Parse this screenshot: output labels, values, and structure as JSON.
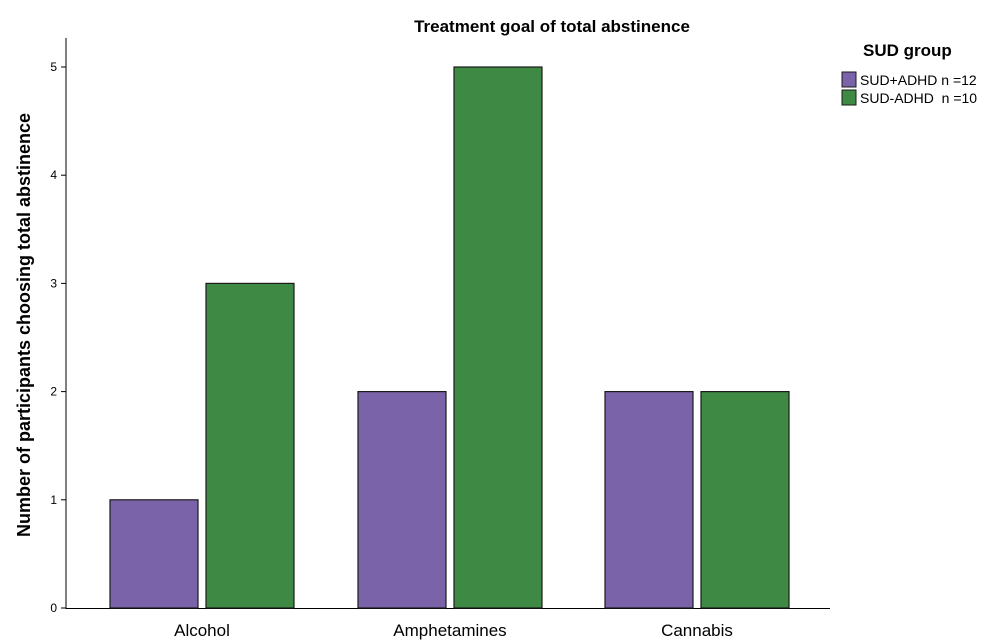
{
  "chart_data": {
    "type": "bar",
    "title": "Treatment goal of total abstinence",
    "xlabel": "",
    "ylabel": "Number of participants choosing total abstinence",
    "categories": [
      "Alcohol",
      "Amphetamines",
      "Cannabis"
    ],
    "ylim": [
      0,
      5
    ],
    "yticks": [
      "0",
      "1",
      "2",
      "3",
      "4",
      "5"
    ],
    "grid": false,
    "legend": {
      "title": "SUD group",
      "position": "top-right"
    },
    "series": [
      {
        "name": "SUD+ADHD n =12",
        "color": "#7b63aa",
        "values": [
          1,
          2,
          2
        ]
      },
      {
        "name": "SUD-ADHD  n =10",
        "color": "#3e8a44",
        "values": [
          3,
          5,
          2
        ]
      }
    ]
  }
}
